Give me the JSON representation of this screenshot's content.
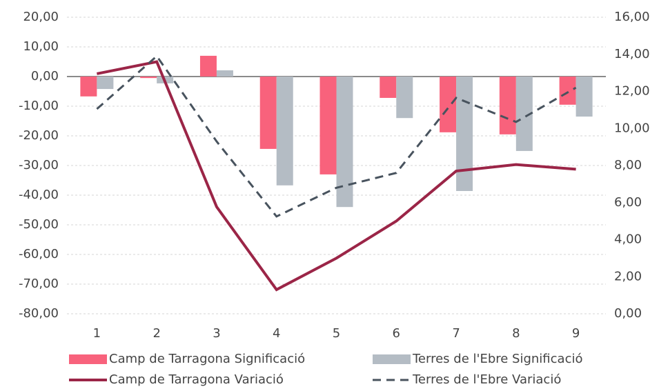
{
  "chart_data": {
    "type": "bar",
    "categories": [
      "1",
      "2",
      "3",
      "4",
      "5",
      "6",
      "7",
      "8",
      "9"
    ],
    "series": [
      {
        "name": "Camp de Tarragona Significació",
        "type": "bar",
        "color": "#f8627c",
        "values": [
          -6.7,
          -0.5,
          7.0,
          -24.4,
          -33.0,
          -7.2,
          -18.8,
          -19.5,
          -9.5
        ]
      },
      {
        "name": "Terres de l'Ebre Significació",
        "type": "bar",
        "color": "#b4bcc4",
        "values": [
          -4.2,
          -2.3,
          2.1,
          -36.7,
          -44.0,
          -14.0,
          -38.6,
          -25.1,
          -13.5
        ]
      },
      {
        "name": "Camp de Tarragona Variació",
        "type": "line",
        "axis": "y2",
        "color": "#9b2547",
        "line_style": "solid",
        "values": [
          12.95,
          13.6,
          5.77,
          1.3,
          3.0,
          5.0,
          7.7,
          8.05,
          7.8
        ]
      },
      {
        "name": "Terres de l'Ebre Variació",
        "type": "line",
        "axis": "y2",
        "color": "#48535e",
        "line_style": "dashed",
        "values": [
          11.05,
          13.9,
          9.3,
          5.25,
          6.8,
          7.6,
          11.65,
          10.35,
          12.2
        ]
      }
    ],
    "ylim": [
      -80,
      20
    ],
    "yticks": [
      {
        "value": -80,
        "label": "-80,00"
      },
      {
        "value": -70,
        "label": "-70,00"
      },
      {
        "value": -60,
        "label": "-60,00"
      },
      {
        "value": -50,
        "label": "-50,00"
      },
      {
        "value": -40,
        "label": "-40,00"
      },
      {
        "value": -30,
        "label": "-30,00"
      },
      {
        "value": -20,
        "label": "-20,00"
      },
      {
        "value": -10,
        "label": "-10,00"
      },
      {
        "value": 0,
        "label": "0,00"
      },
      {
        "value": 10,
        "label": "10,00"
      },
      {
        "value": 20,
        "label": "20,00"
      }
    ],
    "y2lim": [
      0,
      16
    ],
    "y2ticks": [
      {
        "value": 0,
        "label": "0,00"
      },
      {
        "value": 2,
        "label": "2,00"
      },
      {
        "value": 4,
        "label": "4,00"
      },
      {
        "value": 6,
        "label": "6,00"
      },
      {
        "value": 8,
        "label": "8,00"
      },
      {
        "value": 10,
        "label": "10,00"
      },
      {
        "value": 12,
        "label": "12,00"
      },
      {
        "value": 14,
        "label": "14,00"
      },
      {
        "value": 16,
        "label": "16,00"
      }
    ],
    "grid": true,
    "legend": "bottom"
  }
}
